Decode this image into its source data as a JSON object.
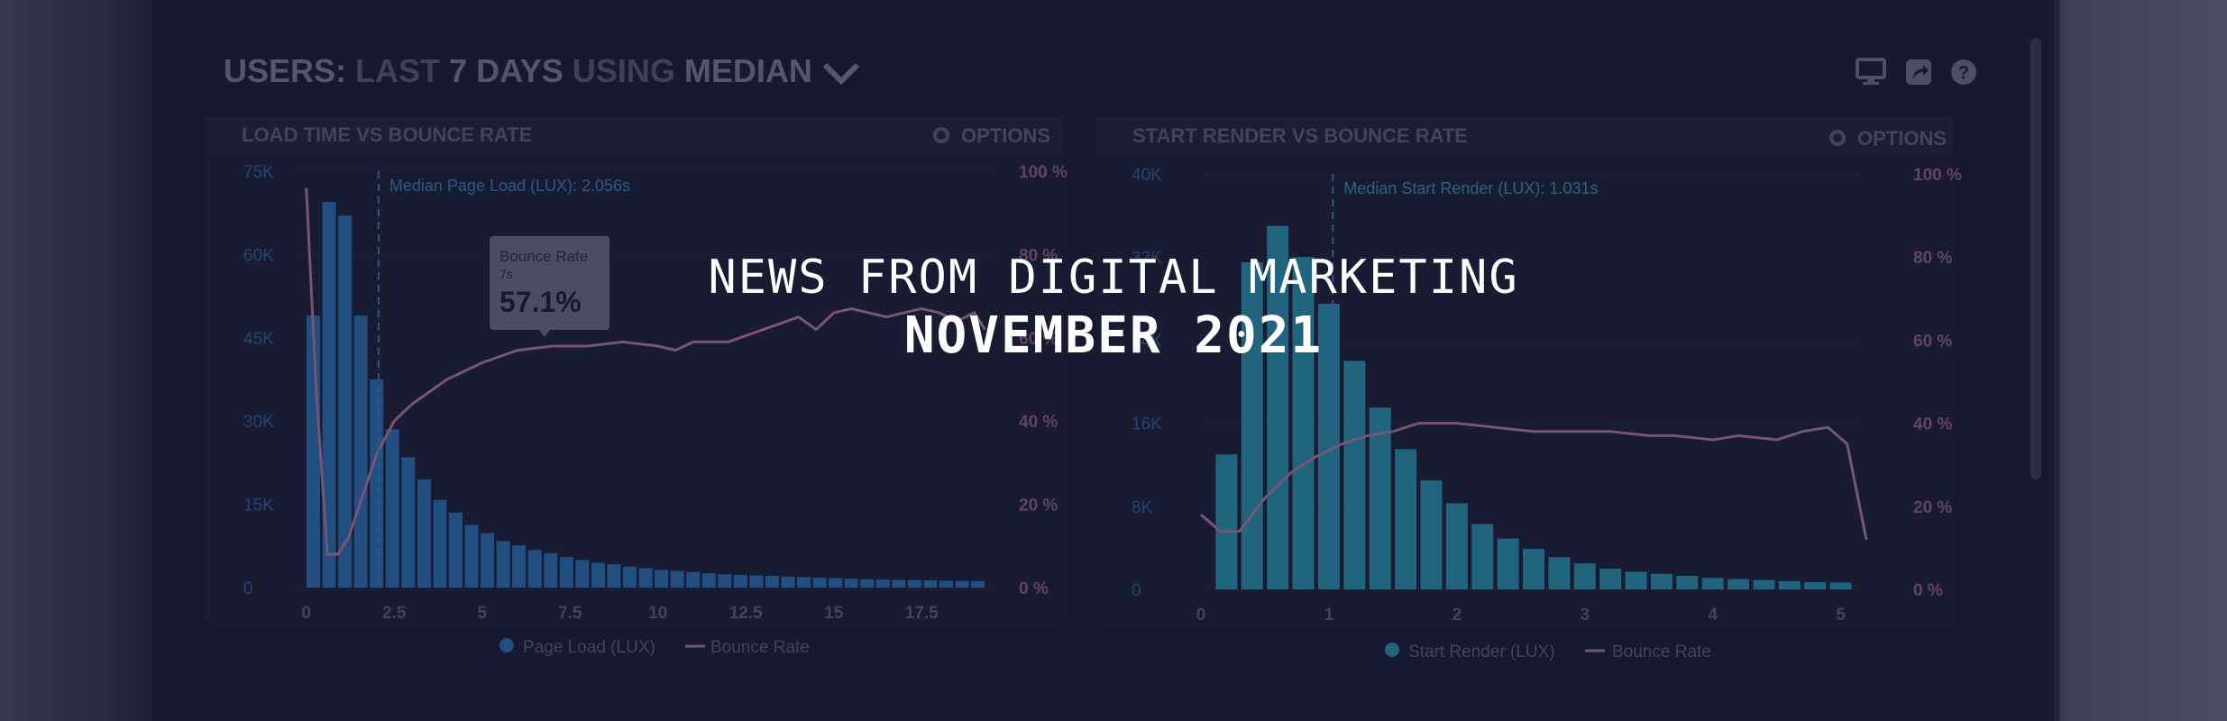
{
  "banner": {
    "kicker": "NEWS FROM DIGITAL MARKETING",
    "date": "NOVEMBER 2021"
  },
  "dashboard": {
    "title_parts": [
      "USERS:",
      "LAST",
      "7 DAYS",
      "USING",
      "MEDIAN"
    ],
    "icons": [
      "desktop-icon",
      "share-icon",
      "help-icon",
      "chevron-down-icon",
      "gear-icon"
    ]
  },
  "chart_data": [
    {
      "type": "bar",
      "title": "LOAD TIME VS BOUNCE RATE",
      "options_label": "OPTIONS",
      "x": [
        0.2,
        0.65,
        1.1,
        1.55,
        2.0,
        2.45,
        2.9,
        3.35,
        3.8,
        4.25,
        4.7,
        5.15,
        5.6,
        6.05,
        6.5,
        6.95,
        7.4,
        7.85,
        8.3,
        8.75,
        9.2,
        9.65,
        10.1,
        10.55,
        11.0,
        11.45,
        11.9,
        12.35,
        12.8,
        13.25,
        13.7,
        14.15,
        14.6,
        15.05,
        15.5,
        15.95,
        16.4,
        16.85,
        17.3,
        17.75,
        18.2,
        18.65,
        19.1
      ],
      "xlim": [
        -0.3,
        19.7
      ],
      "x_ticks": [
        0,
        2.5,
        5,
        7.5,
        10,
        12.5,
        15,
        17.5
      ],
      "x_tick_labels": [
        "0",
        "2.5",
        "5",
        "7.5",
        "10",
        "12.5",
        "15",
        "17.5"
      ],
      "y_ticks": [
        0,
        15000,
        30000,
        45000,
        60000,
        75000
      ],
      "y_tick_labels": [
        "0",
        "15K",
        "30K",
        "45K",
        "60K",
        "75K"
      ],
      "ylim": [
        0,
        75000
      ],
      "y2_ticks": [
        0,
        20,
        40,
        60,
        80,
        100
      ],
      "y2_tick_labels": [
        "0 %",
        "20 %",
        "40 %",
        "60 %",
        "80 %",
        "100 %"
      ],
      "y2lim": [
        0,
        100
      ],
      "series": [
        {
          "name": "Page Load (LUX)",
          "kind": "bar",
          "axis": "left",
          "color": "#2a6fb0",
          "values": [
            49000,
            69500,
            67000,
            49000,
            37500,
            28500,
            23500,
            19500,
            15800,
            13500,
            11300,
            9800,
            8400,
            7600,
            6800,
            6200,
            5500,
            5000,
            4500,
            4200,
            3800,
            3500,
            3200,
            3000,
            2800,
            2600,
            2400,
            2300,
            2200,
            2100,
            2000,
            1900,
            1800,
            1700,
            1600,
            1500,
            1450,
            1400,
            1350,
            1300,
            1250,
            1200,
            1150
          ]
        },
        {
          "name": "Bounce Rate",
          "kind": "line",
          "axis": "right",
          "color": "#b0789a",
          "x": [
            0,
            0.3,
            0.6,
            0.9,
            1.2,
            1.6,
            2.0,
            2.5,
            3.0,
            3.5,
            4.0,
            5.0,
            6.0,
            7.0,
            8.0,
            9.0,
            10.0,
            10.5,
            11.0,
            12.0,
            13.0,
            14.0,
            14.5,
            15.0,
            15.5,
            16.0,
            16.5,
            17.0,
            17.5,
            18.0,
            18.5,
            19.0,
            19.3
          ],
          "values": [
            96,
            45,
            8,
            8,
            12,
            22,
            32,
            40,
            44,
            47,
            50,
            54,
            57,
            58,
            58,
            59,
            58,
            57,
            59,
            59,
            62,
            65,
            62,
            66,
            67,
            66,
            65,
            66,
            67,
            66,
            64,
            66,
            62
          ]
        }
      ],
      "annotations": [
        {
          "text": "Median Page Load (LUX): 2.056s",
          "x": 2.056
        },
        {
          "tooltip_title": "Bounce Rate",
          "tooltip_sub": "7s",
          "tooltip_value": "57.1%",
          "x": 7
        }
      ],
      "legend_placement": "bottom-center"
    },
    {
      "type": "bar",
      "title": "START RENDER VS BOUNCE RATE",
      "options_label": "OPTIONS",
      "x": [
        0.2,
        0.4,
        0.6,
        0.8,
        1.0,
        1.2,
        1.4,
        1.6,
        1.8,
        2.0,
        2.2,
        2.4,
        2.6,
        2.8,
        3.0,
        3.2,
        3.4,
        3.6,
        3.8,
        4.0,
        4.2,
        4.4,
        4.6,
        4.8,
        5.0
      ],
      "xlim": [
        0,
        5.2
      ],
      "x_ticks": [
        0,
        1,
        2,
        3,
        4,
        5
      ],
      "x_tick_labels": [
        "0",
        "1",
        "2",
        "3",
        "4",
        "5"
      ],
      "y_ticks": [
        0,
        8000,
        16000,
        24000,
        32000,
        40000
      ],
      "y_tick_labels": [
        "0",
        "8K",
        "16K",
        "24K",
        "32K",
        "40K"
      ],
      "ylim": [
        0,
        40000
      ],
      "y2_ticks": [
        0,
        20,
        40,
        60,
        80,
        100
      ],
      "y2_tick_labels": [
        "0 %",
        "20 %",
        "40 %",
        "60 %",
        "80 %",
        "100 %"
      ],
      "y2lim": [
        0,
        100
      ],
      "series": [
        {
          "name": "Start Render (LUX)",
          "kind": "bar",
          "axis": "left",
          "color": "#2a8fa8",
          "values": [
            13000,
            31500,
            35000,
            32000,
            27500,
            22000,
            17500,
            13500,
            10500,
            8300,
            6300,
            4900,
            3900,
            3100,
            2500,
            2000,
            1700,
            1500,
            1300,
            1100,
            1000,
            900,
            800,
            700,
            650
          ]
        },
        {
          "name": "Bounce Rate",
          "kind": "line",
          "axis": "right",
          "color": "#b0789a",
          "x": [
            0,
            0.15,
            0.3,
            0.5,
            0.7,
            0.9,
            1.1,
            1.3,
            1.5,
            1.7,
            2.0,
            2.3,
            2.6,
            2.9,
            3.2,
            3.5,
            3.7,
            4.0,
            4.2,
            4.5,
            4.7,
            4.9,
            5.05,
            5.2
          ],
          "values": [
            18,
            14,
            14,
            22,
            28,
            32,
            35,
            37,
            38,
            40,
            40,
            39,
            38,
            38,
            38,
            37,
            37,
            36,
            37,
            36,
            38,
            39,
            35,
            12
          ]
        }
      ],
      "annotations": [
        {
          "text": "Median Start Render (LUX): 1.031s",
          "x": 1.031
        }
      ],
      "legend_placement": "bottom-center"
    }
  ]
}
